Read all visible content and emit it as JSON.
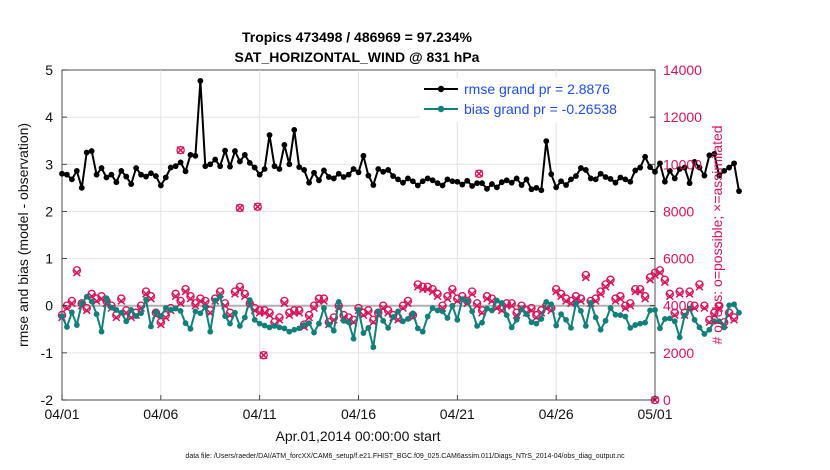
{
  "chart_data": {
    "type": "line",
    "title_line1": "Tropics 473498 / 486969 = 97.234%",
    "title_line2": "SAT_HORIZONTAL_WIND @ 831 hPa",
    "xlabel": "Apr.01,2014 00:00:00 start",
    "ylabel_left": "rmse and bias (model - observation)",
    "ylabel_right": "# of obs: o=possible; ×=assimilated",
    "footer": "data file: /Users/raeder/DAI/ATM_forcXX/CAM6_setup/f.e21.FHIST_BGC.f09_025.CAM6assim.011/Diags_NTrS_2014-04/obs_diag_output.nc",
    "x_tick_labels": [
      "04/01",
      "04/06",
      "04/11",
      "04/16",
      "04/21",
      "04/26",
      "05/01"
    ],
    "x_tick_days": [
      0,
      5,
      10,
      15,
      20,
      25,
      30
    ],
    "xlim_days": [
      0,
      30
    ],
    "ylim_left": [
      -2,
      5
    ],
    "y_ticks_left": [
      "-2",
      "-1",
      "0",
      "1",
      "2",
      "3",
      "4",
      "5"
    ],
    "ylim_right": [
      0,
      14000
    ],
    "y_ticks_right": [
      "0",
      "2000",
      "4000",
      "6000",
      "8000",
      "10000",
      "12000",
      "14000"
    ],
    "legend": [
      {
        "name": "rmse grand pr = 2.8876",
        "color": "#000000"
      },
      {
        "name": "bias grand pr = -0.26538",
        "color": "#12807a"
      }
    ],
    "colors": {
      "rmse": "#000000",
      "bias": "#12807a",
      "obs": "#d6135a",
      "zero_line": "#b0b0b0",
      "grid": "#e2e2e2"
    },
    "time_step_days": 0.25,
    "rmse": [
      2.8,
      2.78,
      2.68,
      2.86,
      2.5,
      3.25,
      3.28,
      2.78,
      2.92,
      2.72,
      2.78,
      2.62,
      2.86,
      2.74,
      2.58,
      2.92,
      2.78,
      2.74,
      2.81,
      2.75,
      2.55,
      2.72,
      2.93,
      2.96,
      3.04,
      2.85,
      3.2,
      3.18,
      4.77,
      2.96,
      3.0,
      3.1,
      2.96,
      3.29,
      2.95,
      3.28,
      3.06,
      3.2,
      3.03,
      2.93,
      2.78,
      2.9,
      3.62,
      2.96,
      2.9,
      3.41,
      3.0,
      3.73,
      2.94,
      2.88,
      2.61,
      2.82,
      2.66,
      2.87,
      2.73,
      2.7,
      2.8,
      2.73,
      2.78,
      2.9,
      2.83,
      3.18,
      2.76,
      2.56,
      2.9,
      2.84,
      2.88,
      2.75,
      2.68,
      2.61,
      2.7,
      2.64,
      2.55,
      2.64,
      2.7,
      2.66,
      2.6,
      2.55,
      2.68,
      2.64,
      2.63,
      2.57,
      2.65,
      2.54,
      2.6,
      2.6,
      2.48,
      2.58,
      2.51,
      2.62,
      2.66,
      2.61,
      2.7,
      2.56,
      2.68,
      2.47,
      2.5,
      2.45,
      3.49,
      2.79,
      2.51,
      2.64,
      2.56,
      2.68,
      2.75,
      2.92,
      2.88,
      2.7,
      2.68,
      2.8,
      2.73,
      2.69,
      2.61,
      2.72,
      2.68,
      2.63,
      2.87,
      2.93,
      3.16,
      2.94,
      2.84,
      3.02,
      2.63,
      2.86,
      2.7,
      2.9,
      2.93,
      2.6,
      3.05,
      2.93,
      2.76,
      3.19,
      3.22,
      2.76,
      2.86,
      2.93,
      3.02,
      2.43
    ],
    "bias": [
      -0.22,
      -0.45,
      -0.14,
      -0.41,
      0.05,
      0.19,
      0.09,
      -0.18,
      -0.55,
      0.16,
      -0.04,
      -0.09,
      -0.15,
      -0.33,
      -0.09,
      -0.22,
      -0.16,
      0.13,
      -0.44,
      -0.13,
      -0.22,
      -0.05,
      -0.09,
      -0.06,
      -0.11,
      -0.37,
      -0.49,
      -0.12,
      -0.16,
      -0.03,
      -0.55,
      0.11,
      0.19,
      -0.22,
      -0.38,
      -0.15,
      -0.43,
      -0.25,
      0.12,
      -0.3,
      -0.38,
      -0.42,
      -0.46,
      -0.43,
      -0.46,
      -0.48,
      -0.55,
      -0.51,
      -0.48,
      -0.41,
      -0.37,
      -0.57,
      -0.38,
      -0.05,
      -0.4,
      -0.53,
      0.08,
      -0.32,
      -0.35,
      -0.7,
      -0.09,
      -0.58,
      -0.47,
      -0.88,
      -0.12,
      -0.32,
      -0.47,
      -0.24,
      -0.12,
      -0.33,
      -0.28,
      -0.16,
      -0.48,
      -0.55,
      -0.23,
      -0.05,
      -0.1,
      -0.12,
      -0.26,
      0.0,
      -0.3,
      0.14,
      0.1,
      -0.12,
      -0.43,
      -0.36,
      -0.06,
      -0.1,
      0.11,
      0.06,
      -0.2,
      -0.46,
      -0.3,
      -0.08,
      -0.18,
      -0.35,
      -0.38,
      -0.28,
      0.08,
      0.03,
      -0.42,
      -0.18,
      -0.3,
      -0.47,
      0.05,
      -0.11,
      -0.43,
      0.06,
      -0.25,
      -0.51,
      -0.32,
      -0.05,
      -0.19,
      -0.2,
      -0.23,
      -0.47,
      -0.41,
      -0.38,
      -0.36,
      -0.1,
      -0.09,
      -0.48,
      -0.28,
      -0.27,
      -0.33,
      -0.67,
      -0.21,
      -0.06,
      -0.3,
      -0.46,
      -0.6,
      -0.51,
      -0.33,
      -0.33,
      -0.46,
      0.01,
      0.03,
      -0.15
    ],
    "obs_possible": [
      3600,
      4000,
      4200,
      5500,
      4100,
      3900,
      4500,
      4300,
      4400,
      4200,
      4000,
      3600,
      4300,
      3800,
      3600,
      3700,
      4000,
      4600,
      4400,
      3700,
      3300,
      3600,
      3900,
      4500,
      4200,
      4700,
      4400,
      4100,
      4300,
      4200,
      3800,
      4300,
      4600,
      4100,
      3700,
      4600,
      4800,
      4500,
      4100,
      3900,
      3800,
      3800,
      3700,
      3300,
      3500,
      4200,
      3700,
      3800,
      3800,
      3200,
      3600,
      4000,
      4300,
      4300,
      3300,
      3500,
      4000,
      3600,
      3500,
      3400,
      3900,
      3700,
      3800,
      3400,
      3700,
      4000,
      3800,
      3600,
      3500,
      4000,
      4200,
      3600,
      4900,
      4800,
      4800,
      4700,
      4500,
      4000,
      4400,
      4700,
      4300,
      4400,
      4200,
      4600,
      4100,
      3800,
      4400,
      4300,
      4000,
      3900,
      4100,
      4100,
      3700,
      4000,
      3800,
      3900,
      3600,
      3800,
      4000,
      3900,
      4700,
      4500,
      4300,
      4200,
      4400,
      4300,
      5300,
      4200,
      4300,
      4600,
      4900,
      5100,
      4300,
      4400,
      4000,
      4100,
      4700,
      4700,
      4400,
      5200,
      5400,
      5500,
      5100,
      4500,
      3700,
      4600,
      3700,
      4600,
      4000,
      4900,
      4000,
      3400,
      3700,
      4000,
      3300,
      3700,
      3500
    ],
    "obs_assimilated": [
      3500,
      3900,
      4100,
      5400,
      4000,
      3800,
      4400,
      4200,
      4300,
      4100,
      3900,
      3500,
      4200,
      3700,
      3500,
      3600,
      3900,
      4500,
      4300,
      3600,
      3200,
      3500,
      3800,
      4400,
      4100,
      4600,
      4300,
      4000,
      4200,
      4100,
      3700,
      4200,
      4500,
      4000,
      3600,
      4500,
      4700,
      4400,
      4000,
      3800,
      3700,
      3700,
      3600,
      3200,
      3400,
      4100,
      3600,
      3700,
      3700,
      3100,
      3500,
      3900,
      4200,
      4200,
      3200,
      3400,
      3900,
      3500,
      3400,
      3300,
      3800,
      3600,
      3700,
      3300,
      3600,
      3900,
      3700,
      3500,
      3400,
      3900,
      4100,
      3500,
      4800,
      4700,
      4700,
      4600,
      4400,
      3900,
      4300,
      4600,
      4200,
      4300,
      4100,
      4500,
      4000,
      3700,
      4300,
      4200,
      3900,
      3800,
      4000,
      4000,
      3600,
      3900,
      3700,
      3800,
      3500,
      3700,
      3900,
      3800,
      4600,
      4400,
      4200,
      4100,
      4300,
      4200,
      5200,
      4100,
      4200,
      4500,
      4800,
      5000,
      4200,
      4300,
      3900,
      4000,
      4600,
      4600,
      4300,
      5100,
      5300,
      5400,
      5000,
      4400,
      3600,
      4500,
      3600,
      4500,
      3900,
      4800,
      3900,
      3300,
      3600,
      3900,
      3200,
      3600,
      3400
    ],
    "obs_outliers": [
      {
        "day": 6.0,
        "count": 10600
      },
      {
        "day": 9.0,
        "count": 8150
      },
      {
        "day": 9.9,
        "count": 8200
      },
      {
        "day": 10.2,
        "count": 1900
      },
      {
        "day": 21.1,
        "count": 9600
      },
      {
        "day": 30.0,
        "count": 0
      }
    ]
  }
}
